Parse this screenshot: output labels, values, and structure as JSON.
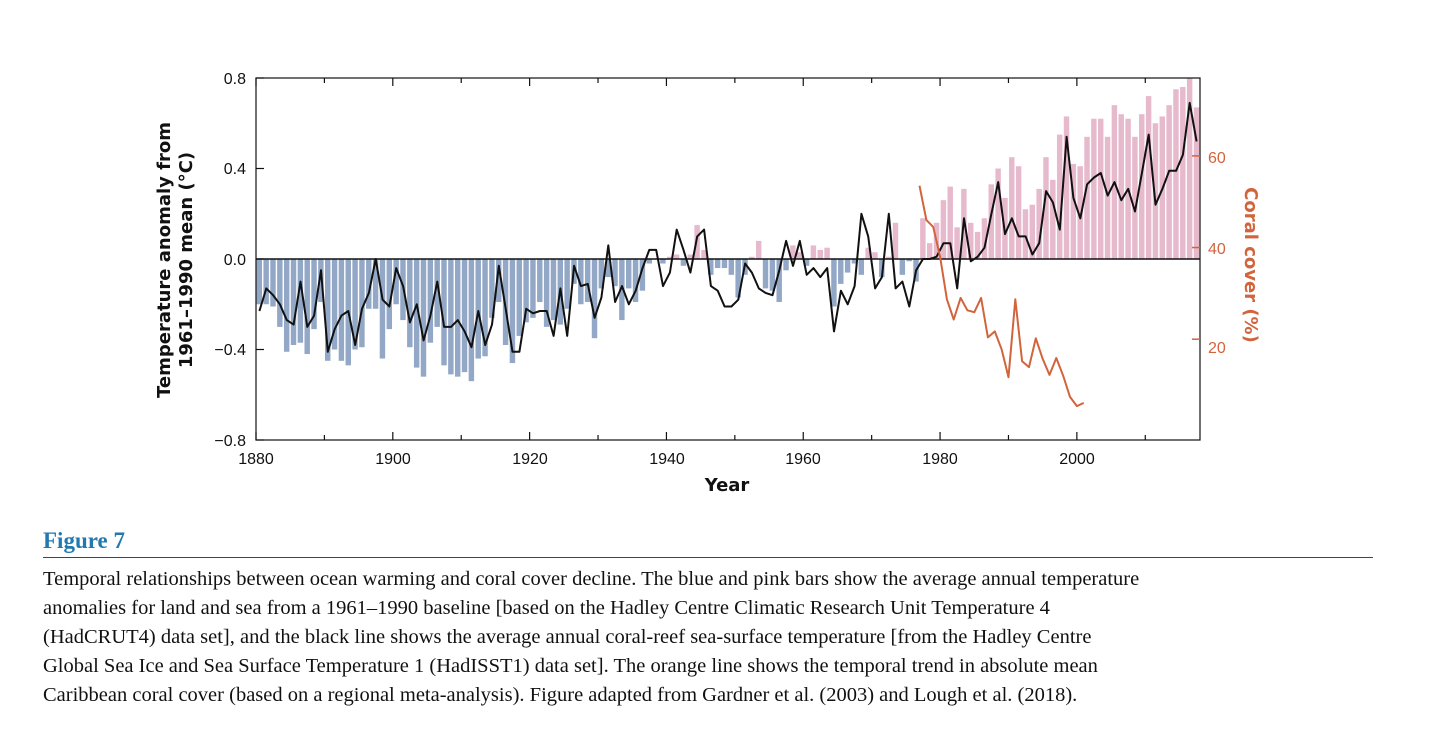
{
  "chart_data": {
    "type": "bar+line",
    "xlabel": "Year",
    "ylabel_lines": [
      "Temperature anomaly from",
      "1961–1990 mean (°C)"
    ],
    "y2label": "Coral cover (%)",
    "xlim": [
      1880,
      2018
    ],
    "ylim": [
      -0.8,
      0.8
    ],
    "y2lim": [
      -2,
      77
    ],
    "x_ticks": [
      "1880",
      "1900",
      "1920",
      "1940",
      "1960",
      "1980",
      "2000"
    ],
    "y_ticks": [
      "0.8",
      "0.4",
      "0.0",
      "−0.4",
      "−0.8"
    ],
    "y2_ticks": [
      "60",
      "40",
      "20"
    ],
    "grid": false,
    "colors": {
      "negative_bar": "#93a8c7",
      "positive_bar": "#e6b9cc",
      "sst_line": "#111111",
      "coral_line": "#d2643c",
      "y2_axis": "#d2643c"
    },
    "bars": {
      "start_year": 1880,
      "values": [
        -0.2,
        -0.2,
        -0.21,
        -0.3,
        -0.41,
        -0.38,
        -0.37,
        -0.42,
        -0.31,
        -0.19,
        -0.45,
        -0.4,
        -0.45,
        -0.47,
        -0.4,
        -0.39,
        -0.22,
        -0.22,
        -0.44,
        -0.31,
        -0.2,
        -0.27,
        -0.39,
        -0.48,
        -0.52,
        -0.37,
        -0.3,
        -0.47,
        -0.51,
        -0.52,
        -0.5,
        -0.54,
        -0.44,
        -0.43,
        -0.26,
        -0.19,
        -0.38,
        -0.46,
        -0.34,
        -0.28,
        -0.26,
        -0.19,
        -0.3,
        -0.27,
        -0.29,
        -0.22,
        -0.11,
        -0.2,
        -0.19,
        -0.35,
        -0.13,
        -0.08,
        -0.12,
        -0.27,
        -0.13,
        -0.19,
        -0.14,
        -0.02,
        -0.0,
        -0.02,
        0.01,
        0.02,
        -0.03,
        0.02,
        0.15,
        0.04,
        -0.07,
        -0.04,
        -0.04,
        -0.07,
        -0.17,
        -0.07,
        0.01,
        0.08,
        -0.13,
        -0.14,
        -0.19,
        -0.05,
        0.06,
        0.03,
        -0.03,
        0.06,
        0.04,
        0.05,
        -0.21,
        -0.11,
        -0.06,
        -0.02,
        -0.07,
        0.05,
        0.03,
        -0.08,
        0.01,
        0.16,
        -0.07,
        -0.01,
        -0.1,
        0.18,
        0.07,
        0.16,
        0.26,
        0.32,
        0.14,
        0.31,
        0.16,
        0.12,
        0.18,
        0.33,
        0.4,
        0.27,
        0.45,
        0.41,
        0.22,
        0.24,
        0.31,
        0.45,
        0.35,
        0.55,
        0.63,
        0.42,
        0.41,
        0.54,
        0.62,
        0.62,
        0.54,
        0.68,
        0.64,
        0.62,
        0.54,
        0.64,
        0.72,
        0.6,
        0.63,
        0.68,
        0.75,
        0.76,
        0.8,
        0.67
      ]
    },
    "sst_line": {
      "start_year": 1880,
      "values": [
        -0.23,
        -0.13,
        -0.16,
        -0.2,
        -0.27,
        -0.29,
        -0.1,
        -0.3,
        -0.25,
        -0.05,
        -0.41,
        -0.31,
        -0.25,
        -0.23,
        -0.38,
        -0.22,
        -0.15,
        0.0,
        -0.18,
        -0.21,
        -0.04,
        -0.12,
        -0.28,
        -0.2,
        -0.36,
        -0.25,
        -0.1,
        -0.3,
        -0.3,
        -0.27,
        -0.32,
        -0.39,
        -0.23,
        -0.38,
        -0.29,
        -0.03,
        -0.22,
        -0.41,
        -0.41,
        -0.22,
        -0.24,
        -0.23,
        -0.23,
        -0.34,
        -0.13,
        -0.34,
        -0.03,
        -0.12,
        -0.11,
        -0.26,
        -0.17,
        0.06,
        -0.19,
        -0.12,
        -0.2,
        -0.14,
        -0.04,
        0.04,
        0.04,
        -0.12,
        -0.06,
        0.13,
        0.04,
        -0.06,
        0.1,
        0.13,
        -0.12,
        -0.14,
        -0.21,
        -0.21,
        -0.18,
        -0.02,
        -0.06,
        -0.13,
        -0.15,
        -0.16,
        -0.05,
        0.08,
        -0.03,
        0.08,
        -0.07,
        -0.04,
        -0.08,
        -0.04,
        -0.32,
        -0.14,
        -0.2,
        -0.12,
        0.2,
        0.1,
        -0.13,
        -0.08,
        0.2,
        -0.13,
        -0.1,
        -0.21,
        -0.05,
        0.0,
        0.0,
        0.01,
        0.07,
        0.07,
        -0.13,
        0.18,
        -0.01,
        0.01,
        0.05,
        0.2,
        0.34,
        0.11,
        0.18,
        0.1,
        0.1,
        0.02,
        0.07,
        0.3,
        0.25,
        0.13,
        0.54,
        0.27,
        0.18,
        0.33,
        0.36,
        0.38,
        0.28,
        0.34,
        0.26,
        0.31,
        0.21,
        0.38,
        0.55,
        0.24,
        0.31,
        0.39,
        0.39,
        0.46,
        0.69,
        0.52
      ]
    },
    "coral_line": {
      "years": [
        1977,
        1978,
        1979,
        1980,
        1981,
        1982,
        1983,
        1984,
        1985,
        1986,
        1987,
        1988,
        1989,
        1990,
        1991,
        1992,
        1993,
        1994,
        1995,
        1996,
        1997,
        1998,
        1999,
        2000,
        2001
      ],
      "values": [
        53.5,
        46,
        44.5,
        38,
        28.7,
        24.3,
        29,
        26.3,
        25.9,
        29,
        20.4,
        21.7,
        17.8,
        11.7,
        28.7,
        15.2,
        13.9,
        20.2,
        15.7,
        12.2,
        15.9,
        12,
        7.4,
        5.4,
        6.1
      ]
    }
  },
  "figure": {
    "label": "Figure 7",
    "caption_lines": [
      "Temporal relationships between ocean warming and coral cover decline. The blue and pink bars show the average annual temperature",
      "anomalies for land and sea from a 1961–1990 baseline [based on the Hadley Centre Climatic Research Unit Temperature 4",
      "(HadCRUT4) data set], and the black line shows the average annual coral-reef sea-surface temperature [from the Hadley Centre",
      "Global Sea Ice and Sea Surface Temperature 1 (HadISST1) data set]. The orange line shows the temporal trend in absolute mean",
      "Caribbean coral cover (based on a regional meta-analysis). Figure adapted from Gardner et al. (2003) and Lough et al. (2018)."
    ]
  }
}
